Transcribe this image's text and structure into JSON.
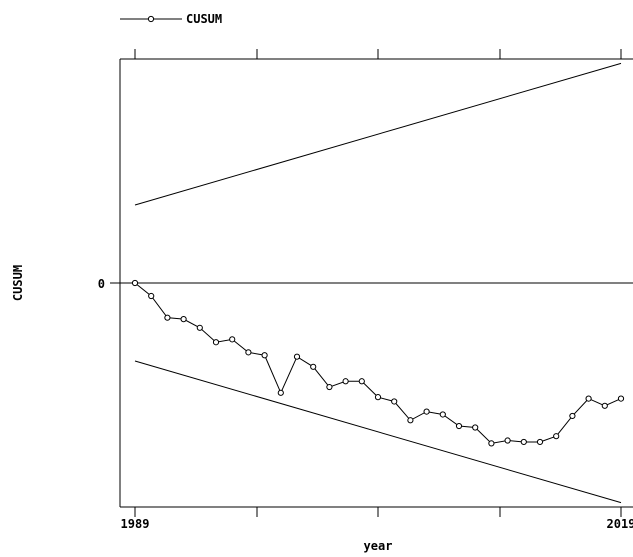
{
  "chart_data": {
    "type": "line",
    "title": "",
    "xlabel": "year",
    "ylabel": "CUSUM",
    "xlim": [
      1989,
      2019
    ],
    "ylim": [
      -15.5,
      15.5
    ],
    "x_tick_labels": [
      "1989",
      "2019"
    ],
    "y_tick_labels": [
      "0"
    ],
    "legend": {
      "position": "top-left",
      "entries": [
        "CUSUM"
      ]
    },
    "grid": false,
    "x": [
      1989,
      1990,
      1991,
      1992,
      1993,
      1994,
      1995,
      1996,
      1997,
      1998,
      1999,
      2000,
      2001,
      2002,
      2003,
      2004,
      2005,
      2006,
      2007,
      2008,
      2009,
      2010,
      2011,
      2012,
      2013,
      2014,
      2015,
      2016,
      2017,
      2018,
      2019
    ],
    "series": [
      {
        "name": "CUSUM",
        "values": [
          0,
          -0.9,
          -2.4,
          -2.5,
          -3.1,
          -4.1,
          -3.9,
          -4.8,
          -5.0,
          -7.6,
          -5.1,
          -5.8,
          -7.2,
          -6.8,
          -6.8,
          -7.9,
          -8.2,
          -9.5,
          -8.9,
          -9.1,
          -9.9,
          -10.0,
          -11.1,
          -10.9,
          -11.0,
          -11.0,
          -10.6,
          -9.2,
          -8.0,
          -8.5,
          -8.0
        ]
      }
    ],
    "bounds": [
      {
        "x": [
          1989,
          2019
        ],
        "values": [
          5.4,
          15.2
        ]
      },
      {
        "x": [
          1989,
          2019
        ],
        "values": [
          -5.4,
          -15.2
        ]
      }
    ],
    "reference_line": 0
  }
}
